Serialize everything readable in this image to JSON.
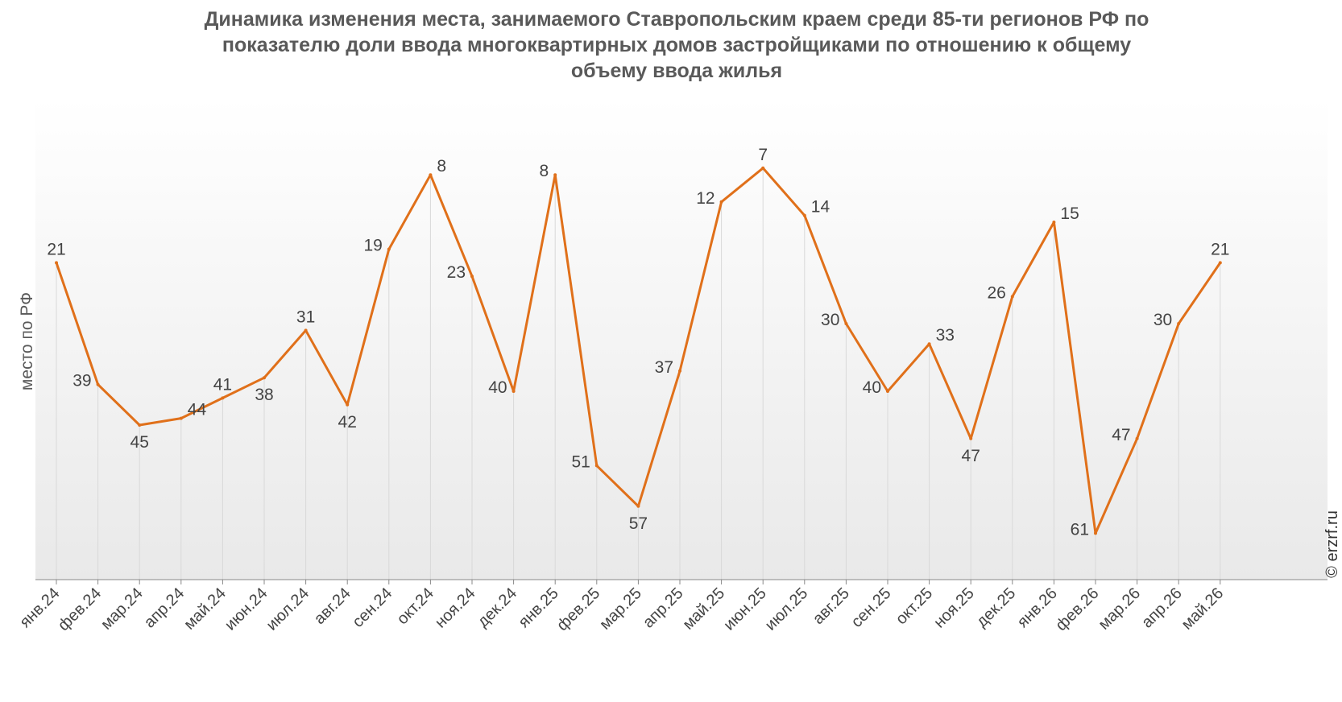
{
  "chart_data": {
    "type": "line",
    "title_lines": [
      "Динамика изменения места, занимаемого Ставропольским краем среди 85-ти регионов РФ по",
      "показателю доли ввода многоквартирных домов застройщиками по отношению к общему",
      "объему ввода жилья"
    ],
    "ylabel": "место по РФ",
    "xlabel": "",
    "y_reversed": true,
    "ylim": [
      0,
      70
    ],
    "categories": [
      "янв.24",
      "фев.24",
      "мар.24",
      "апр.24",
      "май.24",
      "июн.24",
      "июл.24",
      "авг.24",
      "сен.24",
      "окт.24",
      "ноя.24",
      "дек.24",
      "янв.25",
      "фев.25",
      "мар.25",
      "апр.25",
      "май.25",
      "июн.25",
      "июл.25",
      "авг.25",
      "сен.25",
      "окт.25",
      "ноя.25",
      "дек.25",
      "янв.26",
      "фев.26",
      "мар.26",
      "апр.26",
      "май.26"
    ],
    "series": [
      {
        "values": [
          21,
          39,
          45,
          44,
          41,
          38,
          31,
          42,
          19,
          8,
          23,
          40,
          8,
          51,
          57,
          37,
          12,
          7,
          14,
          30,
          40,
          33,
          47,
          26,
          15,
          61,
          47,
          30,
          21
        ],
        "color": "#e0701a"
      }
    ],
    "label_sides": [
      "a",
      "l",
      "b",
      "r",
      "a",
      "b",
      "a",
      "b",
      "l",
      "r",
      "l",
      "l",
      "l",
      "l",
      "b",
      "l",
      "l",
      "a",
      "r",
      "l",
      "l",
      "r",
      "b",
      "l",
      "r",
      "l",
      "l",
      "l",
      "a"
    ],
    "grid": "vertical",
    "watermark": "© erzrf.ru"
  }
}
